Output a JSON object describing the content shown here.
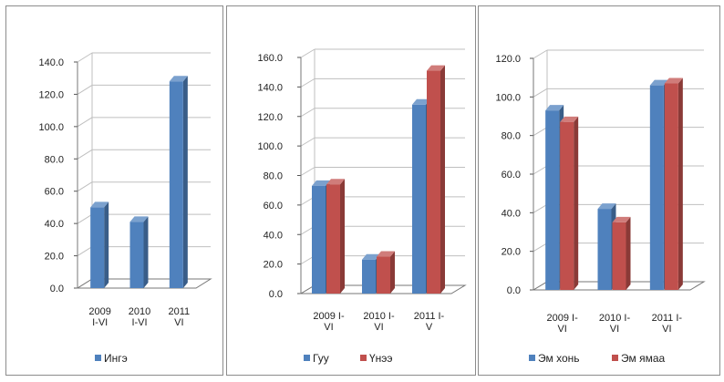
{
  "chart_data": [
    {
      "type": "bar",
      "categories": [
        [
          "2009",
          "I-VI"
        ],
        [
          "2010",
          "I-VI"
        ],
        [
          "2011",
          "VI"
        ]
      ],
      "series": [
        {
          "name": "Ингэ",
          "values": [
            50,
            41,
            128
          ],
          "color": "#4f81bd"
        }
      ],
      "yticks": [
        "0.0",
        "20.0",
        "40.0",
        "60.0",
        "80.0",
        "100.0",
        "120.0",
        "140.0"
      ],
      "ylim": [
        0,
        140
      ],
      "grid": true,
      "legend": "bottom"
    },
    {
      "type": "bar",
      "categories": [
        [
          "2009 I-",
          "VI"
        ],
        [
          "2010 I-",
          "VI"
        ],
        [
          "2011 I-",
          "V"
        ]
      ],
      "series": [
        {
          "name": "Гуу",
          "values": [
            73,
            23,
            128
          ],
          "color": "#4f81bd"
        },
        {
          "name": "Үнээ",
          "values": [
            74,
            25,
            151
          ],
          "color": "#c0504d"
        }
      ],
      "yticks": [
        "0.0",
        "20.0",
        "40.0",
        "60.0",
        "80.0",
        "100.0",
        "120.0",
        "140.0",
        "160.0"
      ],
      "ylim": [
        0,
        160
      ],
      "grid": true,
      "legend": "bottom"
    },
    {
      "type": "bar",
      "categories": [
        [
          "2009 I-",
          "VI"
        ],
        [
          "2010 I-",
          "VI"
        ],
        [
          "2011 I-",
          "VI"
        ]
      ],
      "series": [
        {
          "name": "Эм хонь",
          "values": [
            93,
            42,
            106
          ],
          "color": "#4f81bd"
        },
        {
          "name": "Эм ямаа",
          "values": [
            87,
            35,
            107
          ],
          "color": "#c0504d"
        }
      ],
      "yticks": [
        "0.0",
        "20.0",
        "40.0",
        "60.0",
        "80.0",
        "100.0",
        "120.0"
      ],
      "ylim": [
        0,
        120
      ],
      "grid": true,
      "legend": "bottom"
    }
  ]
}
